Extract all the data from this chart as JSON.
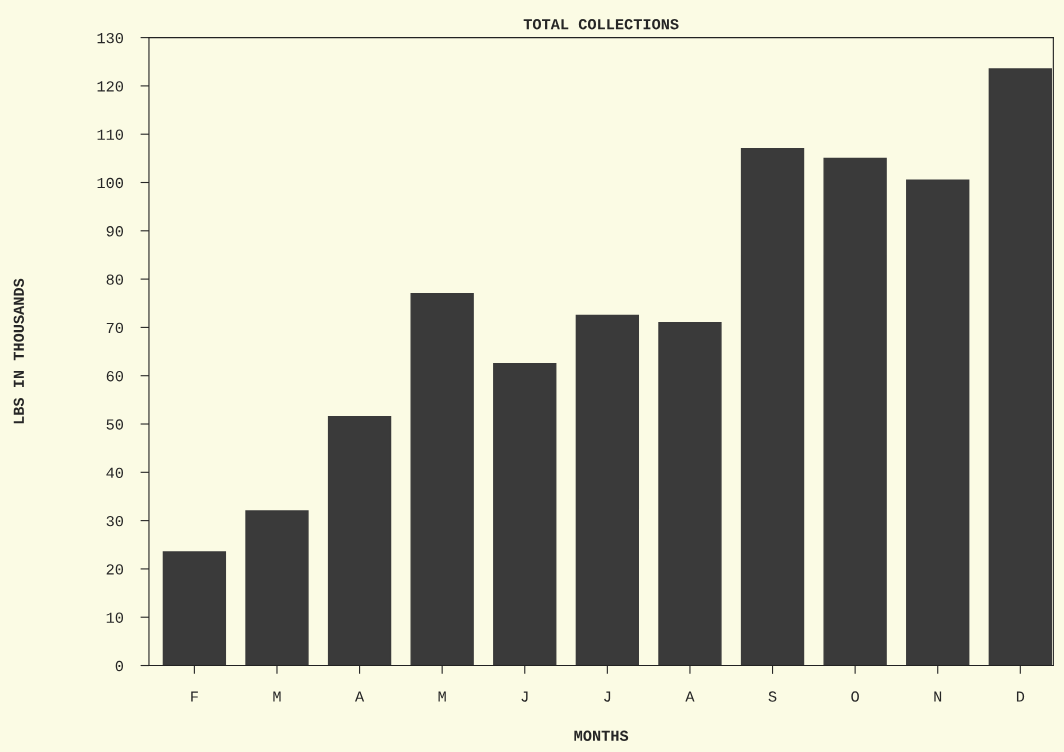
{
  "chart_data": {
    "type": "bar",
    "title": "TOTAL COLLECTIONS",
    "xlabel": "MONTHS",
    "ylabel": "LBS IN THOUSANDS",
    "categories": [
      "F",
      "M",
      "A",
      "M",
      "J",
      "J",
      "A",
      "S",
      "O",
      "N",
      "D"
    ],
    "values": [
      23.5,
      32,
      51.5,
      77,
      62.5,
      72.5,
      71,
      107,
      105,
      100.5,
      123.5
    ],
    "color": "#3a3a3a",
    "ylim": [
      0,
      130
    ],
    "yticks": [
      0,
      10,
      20,
      30,
      40,
      50,
      60,
      70,
      80,
      90,
      100,
      110,
      120,
      130
    ],
    "grid": false,
    "legend": false
  }
}
